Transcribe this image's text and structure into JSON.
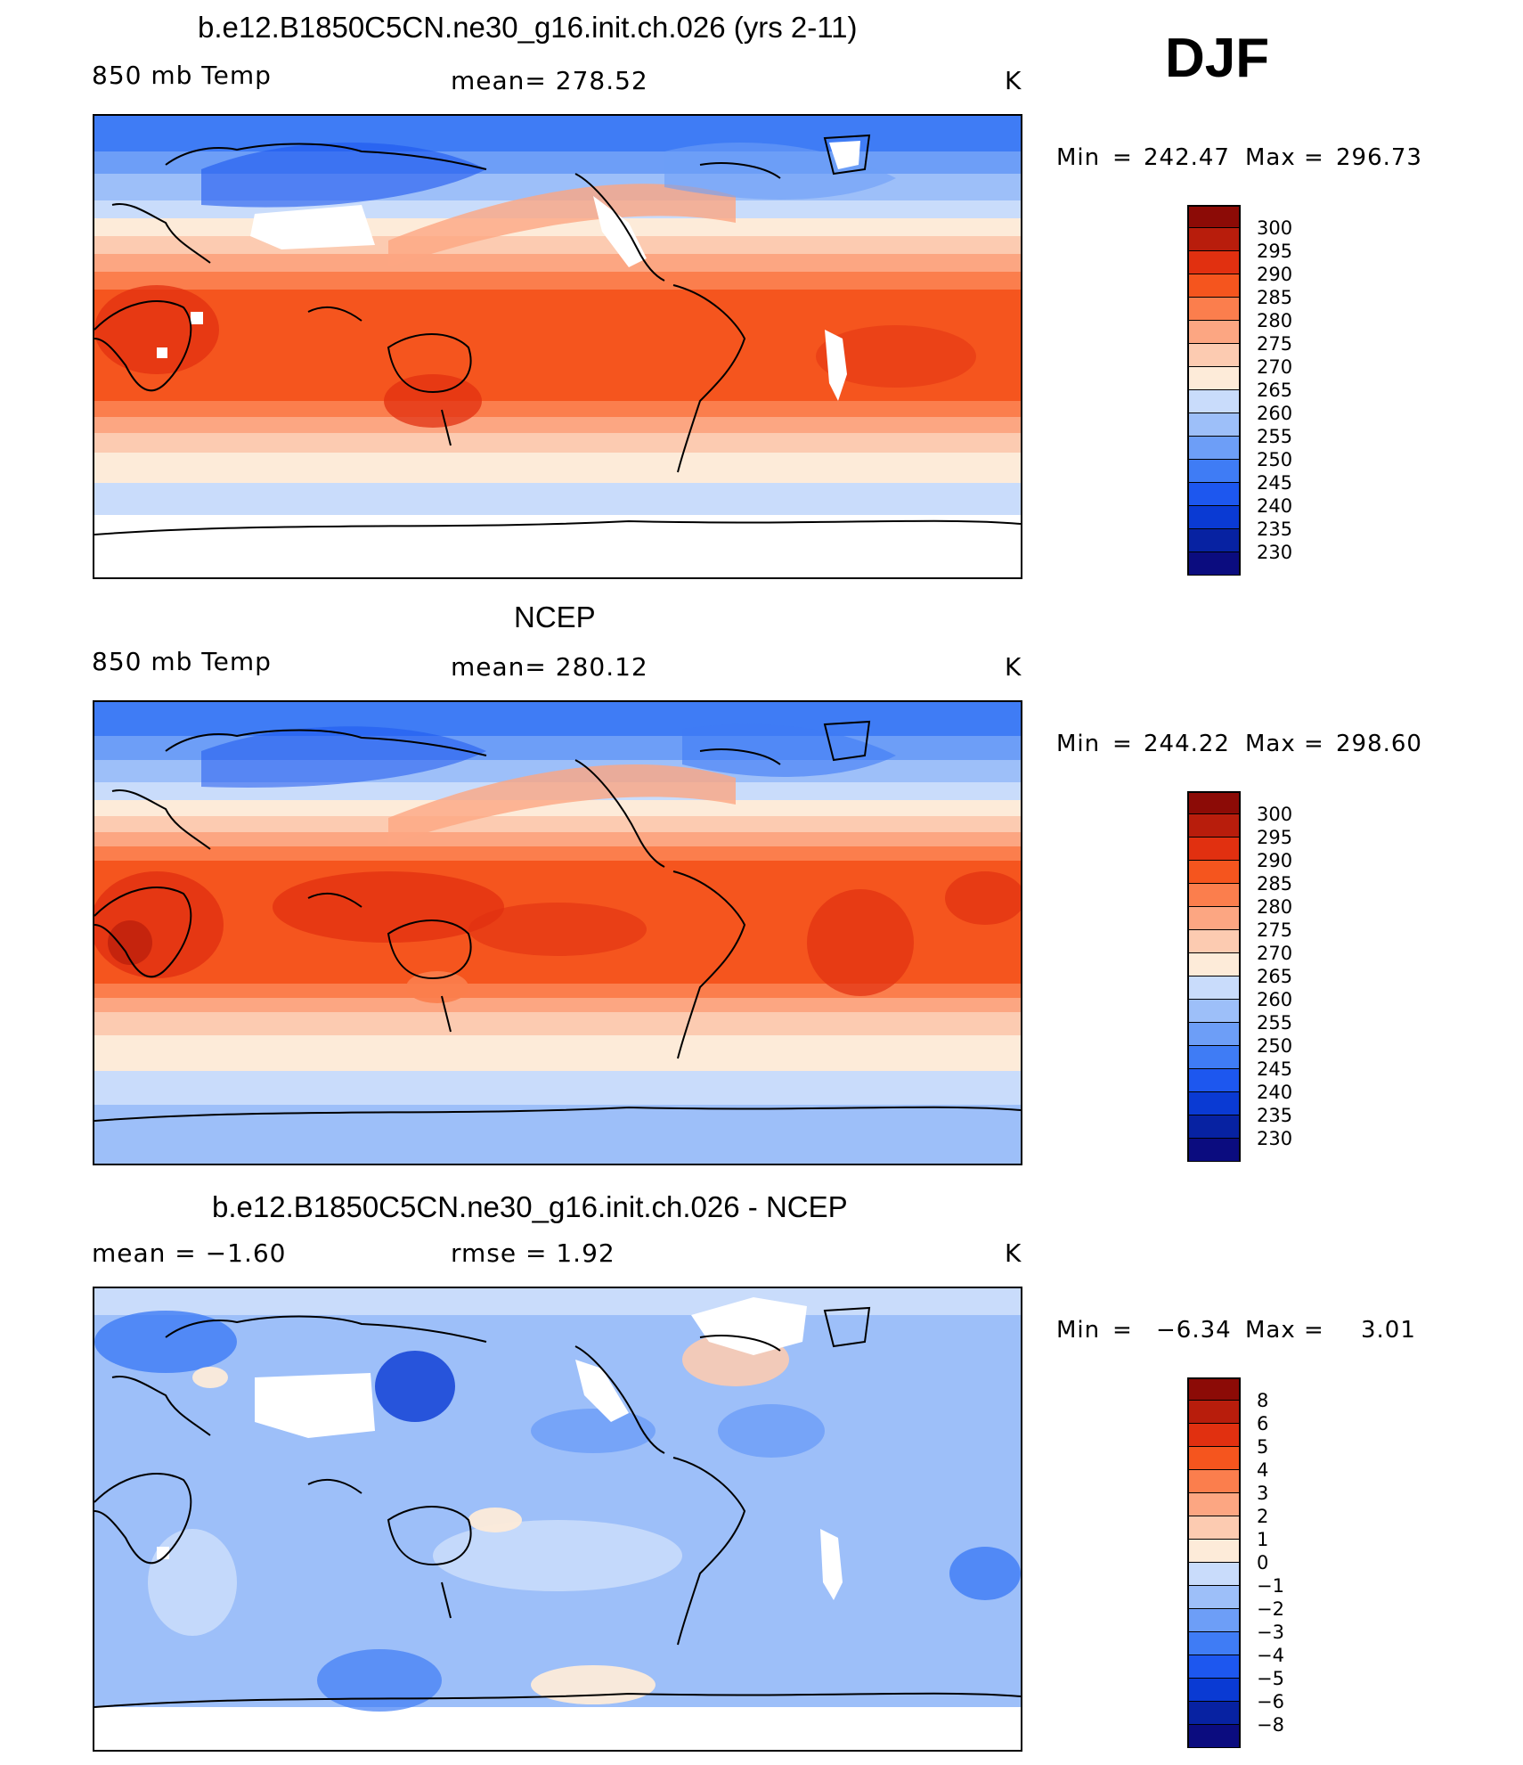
{
  "season": "DJF",
  "colors": {
    "abs_scale": [
      "#0b0c7f",
      "#0722a2",
      "#0a3ad3",
      "#1d57ef",
      "#3f7cf5",
      "#6d9ef7",
      "#9dbff9",
      "#c9dcfb",
      "#fdebd9",
      "#fccbb1",
      "#fca682",
      "#fb7e4d",
      "#f5551e",
      "#e13010",
      "#b81d0c",
      "#8c0b06"
    ],
    "diff_scale": [
      "#0b0c7f",
      "#0722a2",
      "#0a3ad3",
      "#1d57ef",
      "#3f7cf5",
      "#6d9ef7",
      "#9dbff9",
      "#c9dcfb",
      "#fdebd9",
      "#fccbb1",
      "#fca682",
      "#fb7e4d",
      "#f5551e",
      "#e13010",
      "#b81d0c",
      "#8c0b06"
    ],
    "land_outline": "#000000"
  },
  "panels": [
    {
      "title": "b.e12.B1850C5CN.ne30_g16.init.ch.026 (yrs 2-11)",
      "left_label": "850 mb Temp",
      "center_label": "mean=  278.52",
      "units": "K",
      "min_label": "Min",
      "min_value": "242.47",
      "max_label": "Max",
      "max_value": "296.73",
      "colorbar_labels": [
        "300",
        "295",
        "290",
        "285",
        "280",
        "275",
        "270",
        "265",
        "260",
        "255",
        "250",
        "245",
        "240",
        "235",
        "230"
      ]
    },
    {
      "title": "NCEP",
      "left_label": "850 mb Temp",
      "center_label": "mean=  280.12",
      "units": "K",
      "min_label": "Min",
      "min_value": "244.22",
      "max_label": "Max",
      "max_value": "298.60",
      "colorbar_labels": [
        "300",
        "295",
        "290",
        "285",
        "280",
        "275",
        "270",
        "265",
        "260",
        "255",
        "250",
        "245",
        "240",
        "235",
        "230"
      ]
    },
    {
      "title": "b.e12.B1850C5CN.ne30_g16.init.ch.026 - NCEP",
      "left_label": "mean =   −1.60",
      "center_label": "rmse =    1.92",
      "units": "K",
      "min_label": "Min",
      "min_value": "−6.34",
      "max_label": "Max",
      "max_value": "3.01",
      "colorbar_labels": [
        "8",
        "6",
        "5",
        "4",
        "3",
        "2",
        "1",
        "0",
        "−1",
        "−2",
        "−3",
        "−4",
        "−5",
        "−6",
        "−8"
      ]
    }
  ]
}
